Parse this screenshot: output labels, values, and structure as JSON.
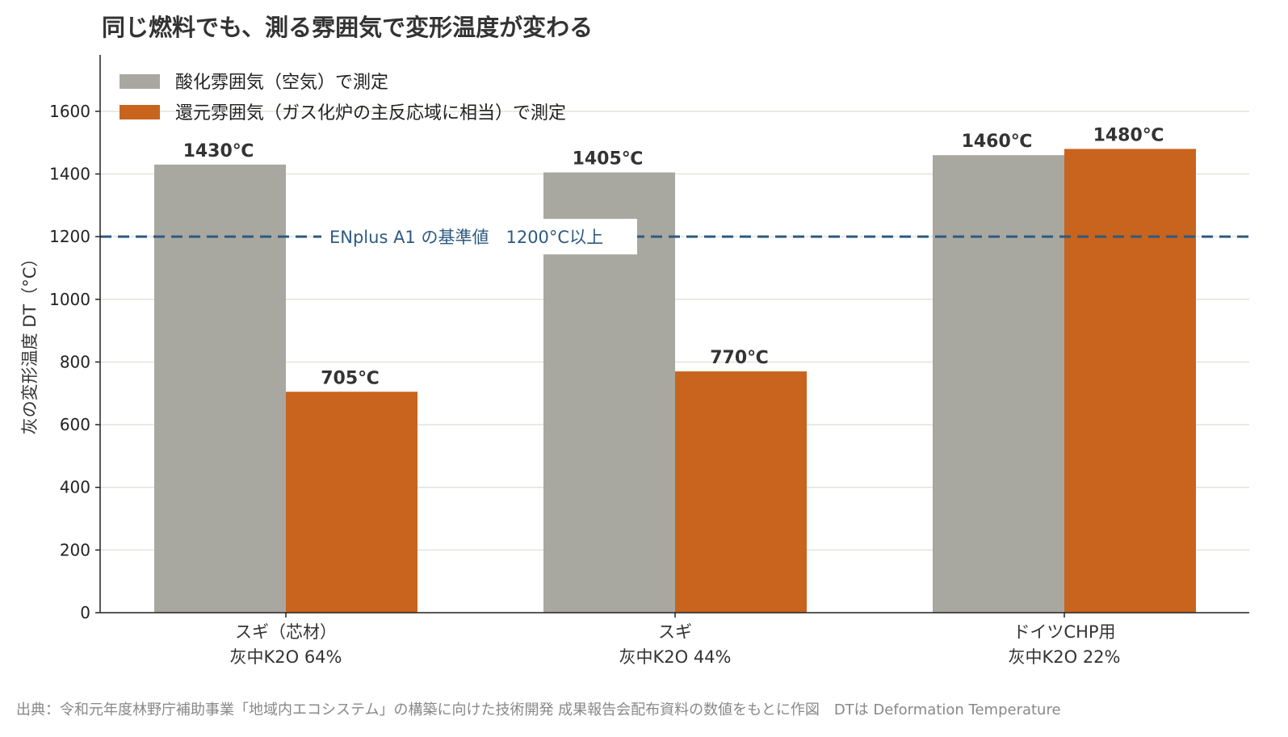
{
  "chart_data": {
    "type": "bar",
    "title": "同じ燃料でも、測る雰囲気で変形温度が変わる",
    "ylabel": "灰の変形温度 DT（°C）",
    "xlabel": "",
    "ylim": [
      0,
      1780
    ],
    "yticks": [
      0,
      200,
      400,
      600,
      800,
      1000,
      1200,
      1400,
      1600
    ],
    "grid": true,
    "legend_position": "top-left",
    "categories": [
      [
        "スギ（芯材）",
        "灰中K2O 64%"
      ],
      [
        "スギ",
        "灰中K2O 44%"
      ],
      [
        "ドイツCHP用",
        "灰中K2O 22%"
      ]
    ],
    "series": [
      {
        "name": "酸化雰囲気（空気）で測定",
        "color": "#a8a8a0",
        "values": [
          1430,
          1405,
          1460
        ],
        "labels": [
          "1430℃",
          "1405℃",
          "1460℃"
        ]
      },
      {
        "name": "還元雰囲気（ガス化炉の主反応域に相当）で測定",
        "color": "#c8641e",
        "values": [
          705,
          770,
          1480
        ],
        "labels": [
          "705℃",
          "770℃",
          "1480℃"
        ]
      }
    ],
    "reference_line": {
      "value": 1200,
      "label": "ENplus A1 の基準値　1200°C以上",
      "color": "#2e5a80"
    },
    "source": "出典：令和元年度林野庁補助事業「地域内エコシステム」の構築に向けた技術開発 成果報告会配布資料の数値をもとに作図　DTは Deformation Temperature"
  }
}
